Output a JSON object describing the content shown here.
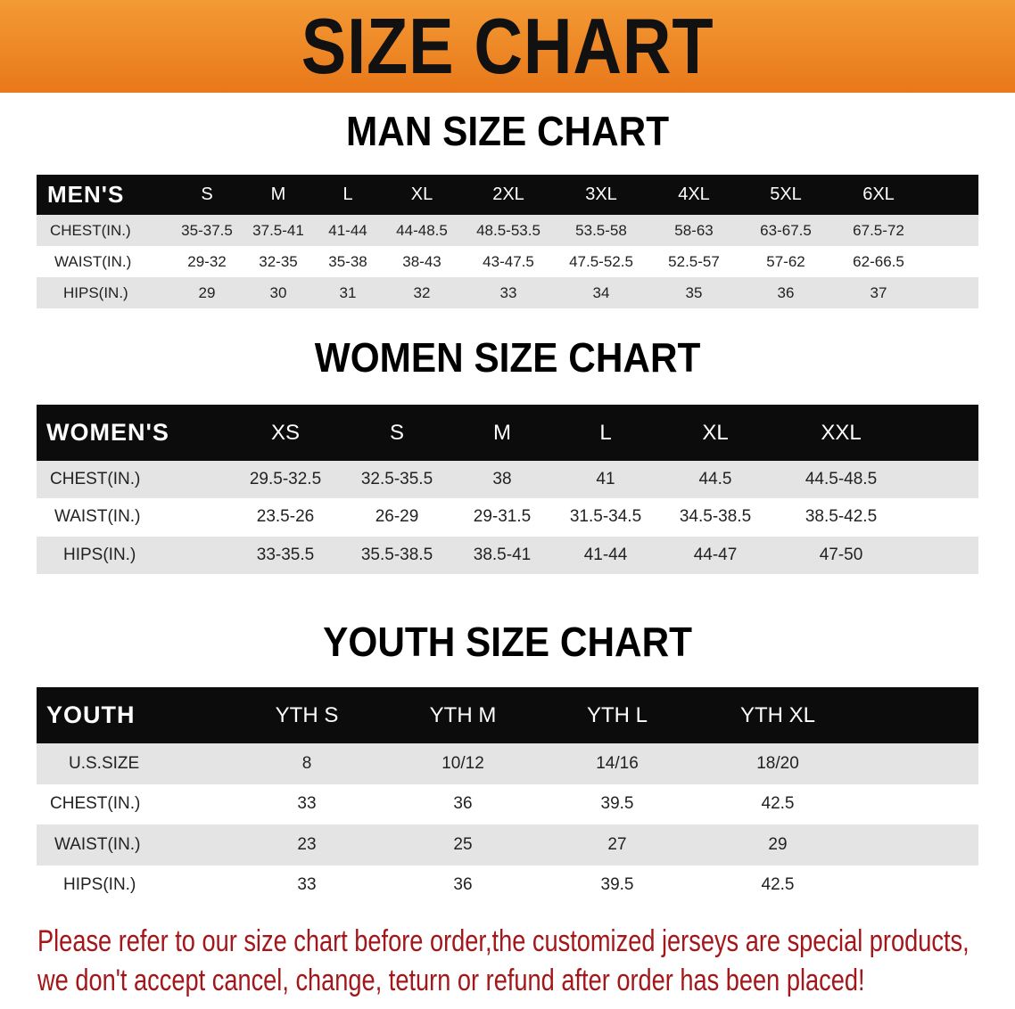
{
  "banner": {
    "title": "SIZE CHART",
    "color": "#ee8524"
  },
  "men": {
    "title": "MAN SIZE CHART",
    "header": "MEN'S",
    "sizes": [
      "S",
      "M",
      "L",
      "XL",
      "2XL",
      "3XL",
      "4XL",
      "5XL",
      "6XL"
    ],
    "rows": [
      {
        "label": "CHEST(IN.)",
        "values": [
          "35-37.5",
          "37.5-41",
          "41-44",
          "44-48.5",
          "48.5-53.5",
          "53.5-58",
          "58-63",
          "63-67.5",
          "67.5-72"
        ]
      },
      {
        "label": "WAIST(IN.)",
        "values": [
          "29-32",
          "32-35",
          "35-38",
          "38-43",
          "43-47.5",
          "47.5-52.5",
          "52.5-57",
          "57-62",
          "62-66.5"
        ]
      },
      {
        "label": "HIPS(IN.)",
        "values": [
          "29",
          "30",
          "31",
          "32",
          "33",
          "34",
          "35",
          "36",
          "37"
        ]
      }
    ]
  },
  "women": {
    "title": "WOMEN SIZE CHART",
    "header": "WOMEN'S",
    "sizes": [
      "XS",
      "S",
      "M",
      "L",
      "XL",
      "XXL"
    ],
    "rows": [
      {
        "label": "CHEST(IN.)",
        "values": [
          "29.5-32.5",
          "32.5-35.5",
          "38",
          "41",
          "44.5",
          "44.5-48.5"
        ]
      },
      {
        "label": "WAIST(IN.)",
        "values": [
          "23.5-26",
          "26-29",
          "29-31.5",
          "31.5-34.5",
          "34.5-38.5",
          "38.5-42.5"
        ]
      },
      {
        "label": "HIPS(IN.)",
        "values": [
          "33-35.5",
          "35.5-38.5",
          "38.5-41",
          "41-44",
          "44-47",
          "47-50"
        ]
      }
    ]
  },
  "youth": {
    "title": "YOUTH SIZE CHART",
    "header": "YOUTH",
    "sizes": [
      "YTH S",
      "YTH M",
      "YTH L",
      "YTH XL"
    ],
    "rows": [
      {
        "label": "U.S.SIZE",
        "values": [
          "8",
          "10/12",
          "14/16",
          "18/20"
        ]
      },
      {
        "label": "CHEST(IN.)",
        "values": [
          "33",
          "36",
          "39.5",
          "42.5"
        ]
      },
      {
        "label": "WAIST(IN.)",
        "values": [
          "23",
          "25",
          "27",
          "29"
        ]
      },
      {
        "label": "HIPS(IN.)",
        "values": [
          "33",
          "36",
          "39.5",
          "42.5"
        ]
      }
    ]
  },
  "notice": {
    "line1": "Please refer to our size chart before order,the customized jerseys are special products,",
    "line2": "we don't accept cancel, change, teturn or refund after order has been placed!",
    "color": "#a3171b"
  }
}
